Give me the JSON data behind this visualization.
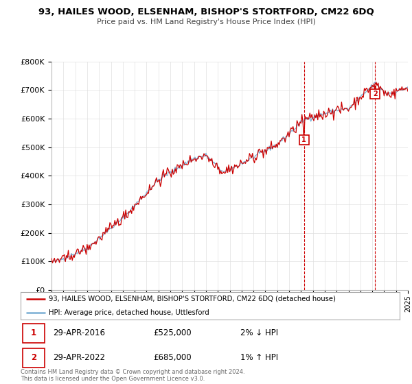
{
  "title_line1": "93, HAILES WOOD, ELSENHAM, BISHOP'S STORTFORD, CM22 6DQ",
  "title_line2": "Price paid vs. HM Land Registry's House Price Index (HPI)",
  "ylim": [
    0,
    800000
  ],
  "yticks": [
    0,
    100000,
    200000,
    300000,
    400000,
    500000,
    600000,
    700000,
    800000
  ],
  "ytick_labels": [
    "£0",
    "£100K",
    "£200K",
    "£300K",
    "£400K",
    "£500K",
    "£600K",
    "£700K",
    "£800K"
  ],
  "hpi_color": "#7bafd4",
  "price_color": "#cc0000",
  "marker1_price": 525000,
  "marker1_date_str": "29-APR-2016",
  "marker1_pct": "2% ↓ HPI",
  "marker2_price": 685000,
  "marker2_date_str": "29-APR-2022",
  "marker2_pct": "1% ↑ HPI",
  "legend_line1": "93, HAILES WOOD, ELSENHAM, BISHOP'S STORTFORD, CM22 6DQ (detached house)",
  "legend_line2": "HPI: Average price, detached house, Uttlesford",
  "footnote": "Contains HM Land Registry data © Crown copyright and database right 2024.\nThis data is licensed under the Open Government Licence v3.0.",
  "bg_color": "#ffffff",
  "grid_color": "#e0e0e0"
}
